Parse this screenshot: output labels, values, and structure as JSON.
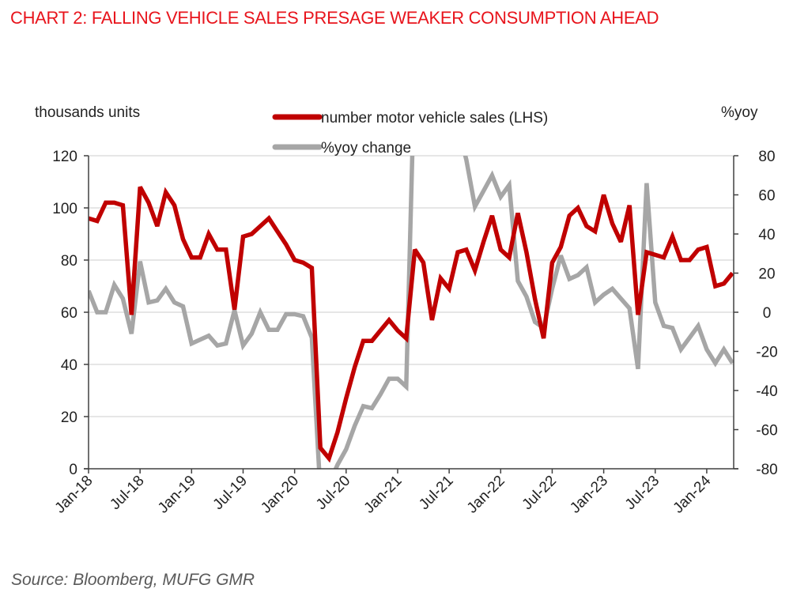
{
  "title": "CHART 2: FALLING VEHICLE SALES PRESAGE WEAKER CONSUMPTION AHEAD",
  "source": "Source: Bloomberg, MUFG GMR",
  "colors": {
    "title": "#e8141c",
    "sales": "#c00000",
    "yoy": "#a6a6a6",
    "grid": "#e6e6e6",
    "axis": "#404040"
  },
  "chart_data": {
    "type": "line",
    "title": "CHART 2: FALLING VEHICLE SALES PRESAGE WEAKER CONSUMPTION AHEAD",
    "ylabel_left": "thousands units",
    "ylabel_right": "%yoy",
    "ylim_left": [
      0,
      120
    ],
    "ylim_right": [
      -80,
      80
    ],
    "yticks_left": [
      "0",
      "20",
      "40",
      "60",
      "80",
      "100",
      "120"
    ],
    "yticks_right": [
      "-80",
      "-60",
      "-40",
      "-20",
      "0",
      "20",
      "40",
      "60",
      "80"
    ],
    "xtick_labels": [
      "Jan-18",
      "Jul-18",
      "Jan-19",
      "Jul-19",
      "Jan-20",
      "Jul-20",
      "Jan-21",
      "Jul-21",
      "Jan-22",
      "Jul-22",
      "Jan-23",
      "Jul-23",
      "Jan-24"
    ],
    "x_start": "Jan-18",
    "x_end": "Apr-24",
    "grid": "horizontal",
    "legend": "top-center",
    "series": [
      {
        "name": "number motor vehicle sales (LHS)",
        "axis": "left",
        "values": [
          96,
          95,
          102,
          102,
          101,
          59,
          108,
          102,
          93,
          106,
          101,
          88,
          81,
          81,
          90,
          84,
          84,
          61,
          89,
          90,
          93,
          96,
          91,
          86,
          80,
          79,
          77,
          8,
          4,
          14,
          27,
          39,
          49,
          49,
          53,
          57,
          53,
          50,
          84,
          79,
          57,
          73,
          69,
          83,
          84,
          76,
          87,
          97,
          84,
          81,
          98,
          83,
          65,
          50,
          79,
          85,
          97,
          100,
          93,
          91,
          105,
          94,
          87,
          101,
          59,
          83,
          82,
          81,
          89,
          80,
          80,
          84,
          85,
          70,
          71,
          75
        ]
      },
      {
        "name": "%yoy change",
        "axis": "right",
        "values": [
          11,
          0,
          0,
          14,
          7,
          -11,
          26,
          5,
          6,
          12,
          5,
          3,
          -16,
          -14,
          -12,
          -17,
          -16,
          1,
          -17,
          -11,
          0,
          -9,
          -9,
          -1,
          -1,
          -2,
          -13,
          -92,
          -88,
          -78,
          -70,
          -58,
          -48,
          -49,
          -42,
          -34,
          -34,
          -38,
          130,
          160,
          200,
          170,
          120,
          95,
          78,
          54,
          62,
          70,
          59,
          65,
          16,
          8,
          -5,
          -8,
          12,
          29,
          17,
          19,
          23,
          5,
          9,
          12,
          7,
          2,
          -29,
          66,
          5,
          -7,
          -8,
          -19,
          -13,
          -7,
          -19,
          -26,
          -19,
          -26
        ]
      }
    ]
  }
}
